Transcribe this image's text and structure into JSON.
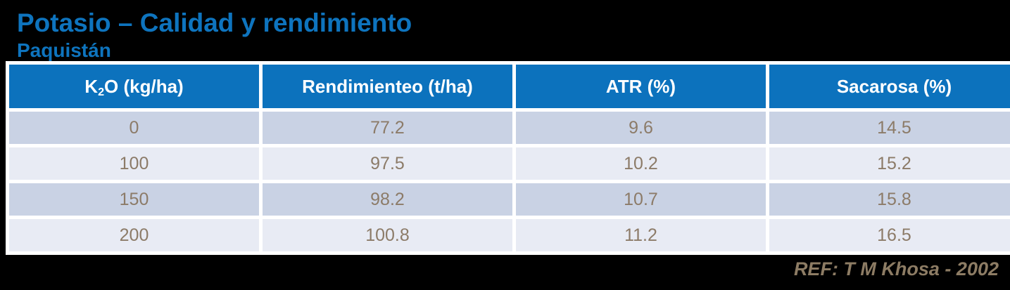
{
  "slide": {
    "title": "Potasio – Calidad y rendimiento",
    "subtitle": "Paquistán",
    "reference": "REF: T M Khosa - 2002"
  },
  "colors": {
    "background": "#000000",
    "title_blue": "#0E74BE",
    "header_bg": "#0C72BD",
    "header_text": "#FFFFFF",
    "row_dark": "#C9D2E4",
    "row_light": "#E8EBF4",
    "cell_text": "#8C7B68",
    "reference_text": "#8D7C64"
  },
  "table": {
    "header_display": {
      "c0": {
        "base": "K",
        "sub": "2",
        "rest": "O (kg/ha)"
      },
      "c1": "Rendimienteo (t/ha)",
      "c2": "ATR (%)",
      "c3": "Sacarosa (%)"
    }
  },
  "chart_data": {
    "type": "table",
    "title": "Potasio – Calidad y rendimiento",
    "subtitle": "Paquistán",
    "columns": [
      "K2O (kg/ha)",
      "Rendimienteo (t/ha)",
      "ATR (%)",
      "Sacarosa (%)"
    ],
    "rows": [
      [
        "0",
        "77.2",
        "9.6",
        "14.5"
      ],
      [
        "100",
        "97.5",
        "10.2",
        "15.2"
      ],
      [
        "150",
        "98.2",
        "10.7",
        "15.8"
      ],
      [
        "200",
        "100.8",
        "11.2",
        "16.5"
      ]
    ],
    "reference": "REF: T M Khosa - 2002"
  }
}
